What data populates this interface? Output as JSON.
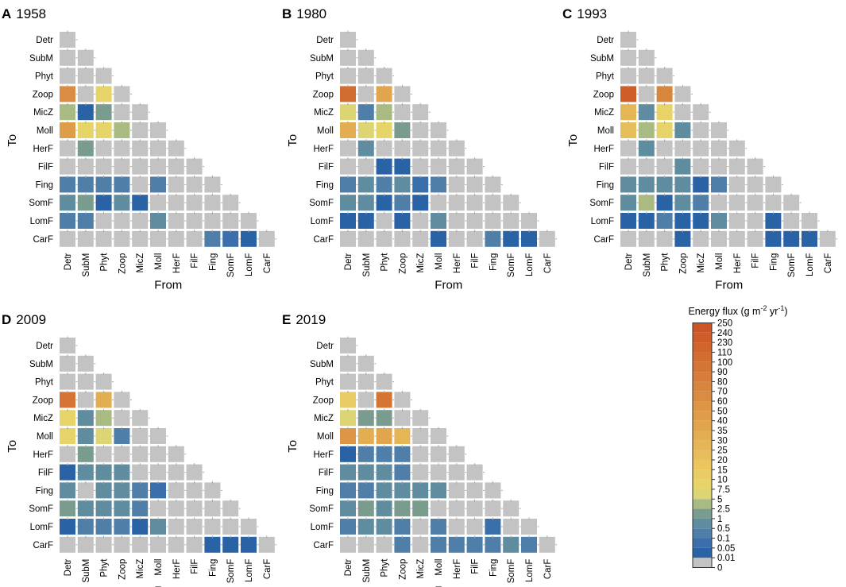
{
  "figure": {
    "y_title": "To",
    "x_title": "From",
    "nodes": [
      "Detr",
      "SubM",
      "Phyt",
      "Zoop",
      "MicZ",
      "Moll",
      "HerF",
      "FilF",
      "Fing",
      "SomF",
      "LomF",
      "CarF"
    ]
  },
  "legend": {
    "title": "Energy flux (g m",
    "title_sup1": "-2",
    "title_mid": " yr",
    "title_sup2": "-1",
    "title_end": ")",
    "bins": [
      {
        "label": "0",
        "color": "#c3c3c3"
      },
      {
        "label": "0.01",
        "color": "#2a62a6"
      },
      {
        "label": "0.05",
        "color": "#3b6fab"
      },
      {
        "label": "0.1",
        "color": "#4f7ea9"
      },
      {
        "label": "0.5",
        "color": "#5f8c9e"
      },
      {
        "label": "1",
        "color": "#7a9c8f"
      },
      {
        "label": "2.5",
        "color": "#a9ba83"
      },
      {
        "label": "5",
        "color": "#ddd573"
      },
      {
        "label": "7.5",
        "color": "#e6d468"
      },
      {
        "label": "10",
        "color": "#e9cc63"
      },
      {
        "label": "15",
        "color": "#ebc55e"
      },
      {
        "label": "20",
        "color": "#e8bd5b"
      },
      {
        "label": "25",
        "color": "#e6b556"
      },
      {
        "label": "30",
        "color": "#e3ad52"
      },
      {
        "label": "35",
        "color": "#e1a54e"
      },
      {
        "label": "40",
        "color": "#df9d4a"
      },
      {
        "label": "50",
        "color": "#dd9546"
      },
      {
        "label": "60",
        "color": "#da8d42"
      },
      {
        "label": "70",
        "color": "#d8853e"
      },
      {
        "label": "80",
        "color": "#d67d3a"
      },
      {
        "label": "90",
        "color": "#d47536"
      },
      {
        "label": "100",
        "color": "#d26d32"
      },
      {
        "label": "110",
        "color": "#d0652e"
      },
      {
        "label": "230",
        "color": "#ce5d2a"
      },
      {
        "label": "240",
        "color": "#cc5526"
      },
      {
        "label": "250",
        "color": "#ca4d22"
      }
    ]
  },
  "chart_data": [
    {
      "type": "heatmap",
      "panel": "A",
      "title": "1958",
      "xlabel": "From",
      "ylabel": "To",
      "categories": [
        "Detr",
        "SubM",
        "Phyt",
        "Zoop",
        "MicZ",
        "Moll",
        "HerF",
        "FilF",
        "Fing",
        "SomF",
        "LomF",
        "CarF"
      ],
      "color_bin_index": [
        [
          0
        ],
        [
          0,
          0
        ],
        [
          0,
          0,
          0
        ],
        [
          17,
          0,
          8,
          0
        ],
        [
          6,
          1,
          5,
          0,
          0
        ],
        [
          15,
          8,
          8,
          6,
          0,
          0
        ],
        [
          0,
          5,
          0,
          0,
          0,
          0,
          0
        ],
        [
          0,
          0,
          0,
          0,
          0,
          0,
          0,
          0
        ],
        [
          3,
          3,
          3,
          3,
          0,
          3,
          0,
          0,
          0
        ],
        [
          4,
          5,
          1,
          4,
          1,
          0,
          0,
          0,
          0,
          0
        ],
        [
          3,
          3,
          0,
          0,
          0,
          4,
          0,
          0,
          0,
          0,
          0
        ],
        [
          0,
          0,
          0,
          0,
          0,
          0,
          0,
          0,
          3,
          2,
          1,
          0
        ]
      ]
    },
    {
      "type": "heatmap",
      "panel": "B",
      "title": "1980",
      "xlabel": "From",
      "ylabel": "To",
      "categories": [
        "Detr",
        "SubM",
        "Phyt",
        "Zoop",
        "MicZ",
        "Moll",
        "HerF",
        "FilF",
        "Fing",
        "SomF",
        "LomF",
        "CarF"
      ],
      "color_bin_index": [
        [
          0
        ],
        [
          0,
          0
        ],
        [
          0,
          0,
          0
        ],
        [
          21,
          0,
          14,
          0
        ],
        [
          7,
          3,
          6,
          0,
          0
        ],
        [
          13,
          7,
          8,
          5,
          0,
          0
        ],
        [
          0,
          4,
          0,
          0,
          0,
          0,
          0
        ],
        [
          0,
          0,
          1,
          1,
          0,
          0,
          0,
          0
        ],
        [
          3,
          4,
          3,
          4,
          2,
          3,
          0,
          0,
          0
        ],
        [
          4,
          4,
          1,
          3,
          1,
          0,
          0,
          0,
          0,
          0
        ],
        [
          1,
          1,
          0,
          1,
          0,
          4,
          0,
          0,
          0,
          0,
          0
        ],
        [
          0,
          0,
          0,
          0,
          0,
          1,
          0,
          0,
          3,
          1,
          1,
          0
        ]
      ]
    },
    {
      "type": "heatmap",
      "panel": "C",
      "title": "1993",
      "xlabel": "From",
      "ylabel": "To",
      "categories": [
        "Detr",
        "SubM",
        "Phyt",
        "Zoop",
        "MicZ",
        "Moll",
        "HerF",
        "FilF",
        "Fing",
        "SomF",
        "LomF",
        "CarF"
      ],
      "color_bin_index": [
        [
          0
        ],
        [
          0,
          0
        ],
        [
          0,
          0,
          0
        ],
        [
          23,
          0,
          18,
          0
        ],
        [
          12,
          4,
          8,
          0,
          0
        ],
        [
          11,
          6,
          8,
          4,
          0,
          0
        ],
        [
          0,
          4,
          0,
          0,
          0,
          0,
          0
        ],
        [
          0,
          0,
          0,
          4,
          0,
          0,
          0,
          0
        ],
        [
          4,
          4,
          4,
          4,
          1,
          3,
          0,
          0,
          0
        ],
        [
          4,
          6,
          1,
          4,
          3,
          0,
          0,
          0,
          0,
          0
        ],
        [
          1,
          1,
          3,
          1,
          1,
          4,
          0,
          0,
          1,
          0,
          0
        ],
        [
          0,
          0,
          0,
          1,
          0,
          0,
          0,
          0,
          1,
          1,
          1,
          0
        ]
      ]
    },
    {
      "type": "heatmap",
      "panel": "D",
      "title": "2009",
      "xlabel": "From",
      "ylabel": "To",
      "categories": [
        "Detr",
        "SubM",
        "Phyt",
        "Zoop",
        "MicZ",
        "Moll",
        "HerF",
        "FilF",
        "Fing",
        "SomF",
        "LomF",
        "CarF"
      ],
      "color_bin_index": [
        [
          0
        ],
        [
          0,
          0
        ],
        [
          0,
          0,
          0
        ],
        [
          20,
          0,
          13,
          0
        ],
        [
          8,
          4,
          6,
          0,
          0
        ],
        [
          8,
          4,
          7,
          3,
          0,
          0
        ],
        [
          0,
          5,
          0,
          0,
          0,
          0,
          0
        ],
        [
          1,
          4,
          4,
          4,
          0,
          0,
          0,
          0
        ],
        [
          4,
          0,
          4,
          4,
          3,
          2,
          0,
          0,
          0
        ],
        [
          5,
          4,
          4,
          4,
          3,
          0,
          0,
          0,
          0,
          0
        ],
        [
          1,
          3,
          3,
          3,
          1,
          4,
          0,
          0,
          0,
          0,
          0
        ],
        [
          0,
          0,
          0,
          0,
          0,
          0,
          0,
          0,
          1,
          1,
          1,
          0
        ]
      ]
    },
    {
      "type": "heatmap",
      "panel": "E",
      "title": "2019",
      "xlabel": "From",
      "ylabel": "To",
      "categories": [
        "Detr",
        "SubM",
        "Phyt",
        "Zoop",
        "MicZ",
        "Moll",
        "HerF",
        "FilF",
        "Fing",
        "SomF",
        "LomF",
        "CarF"
      ],
      "color_bin_index": [
        [
          0
        ],
        [
          0,
          0
        ],
        [
          0,
          0,
          0
        ],
        [
          9,
          0,
          20,
          0
        ],
        [
          7,
          5,
          5,
          0,
          0
        ],
        [
          16,
          13,
          14,
          12,
          0,
          0
        ],
        [
          1,
          3,
          3,
          3,
          0,
          0,
          0
        ],
        [
          4,
          4,
          4,
          3,
          0,
          0,
          0,
          0
        ],
        [
          3,
          3,
          4,
          4,
          4,
          4,
          0,
          0,
          0
        ],
        [
          4,
          5,
          4,
          5,
          5,
          0,
          0,
          0,
          0,
          0
        ],
        [
          3,
          4,
          4,
          3,
          0,
          3,
          0,
          0,
          2,
          0,
          0
        ],
        [
          0,
          0,
          0,
          3,
          0,
          3,
          3,
          3,
          3,
          4,
          3,
          0
        ]
      ]
    }
  ]
}
